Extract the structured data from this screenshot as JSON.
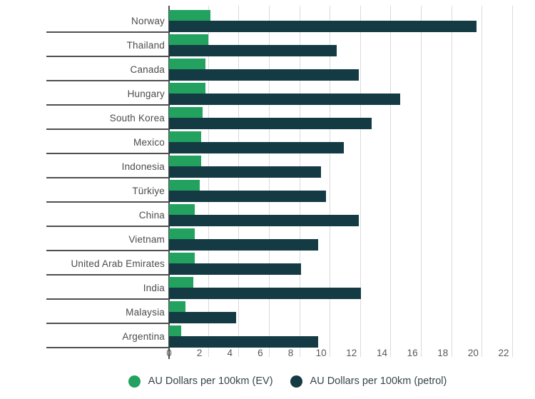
{
  "chart_data": {
    "type": "bar",
    "orientation": "horizontal",
    "title": "",
    "xlabel": "",
    "ylabel": "",
    "xlim": [
      0,
      22
    ],
    "x_ticks": [
      0,
      2,
      4,
      6,
      8,
      10,
      12,
      14,
      16,
      18,
      20,
      22
    ],
    "grid": "vertical",
    "legend_position": "bottom",
    "categories": [
      "Norway",
      "Thailand",
      "Canada",
      "Hungary",
      "South Korea",
      "Mexico",
      "Indonesia",
      "Türkiye",
      "China",
      "Vietnam",
      "United Arab Emirates",
      "India",
      "Malaysia",
      "Argentina"
    ],
    "series": [
      {
        "name": "AU Dollars per 100km (EV)",
        "color": "#22A15F",
        "values": [
          2.7,
          2.6,
          2.4,
          2.4,
          2.2,
          2.1,
          2.1,
          2.0,
          1.7,
          1.7,
          1.7,
          1.6,
          1.1,
          0.8
        ]
      },
      {
        "name": "AU Dollars per 100km (petrol)",
        "color": "#143B44",
        "values": [
          20.2,
          11.0,
          12.5,
          15.2,
          13.3,
          11.5,
          10.0,
          10.3,
          12.5,
          9.8,
          8.7,
          12.6,
          4.4,
          9.8
        ]
      }
    ]
  },
  "colors": {
    "ev_bar": "#22A15F",
    "petrol_bar": "#143B44",
    "gridline": "#DADADA",
    "axis_line": "#4F4F4F",
    "row_separator": "#4F4F4F",
    "country_label_text": "#4B4B4B",
    "tick_text": "#595959",
    "legend_text": "#35464A",
    "background": "#FFFFFF"
  }
}
